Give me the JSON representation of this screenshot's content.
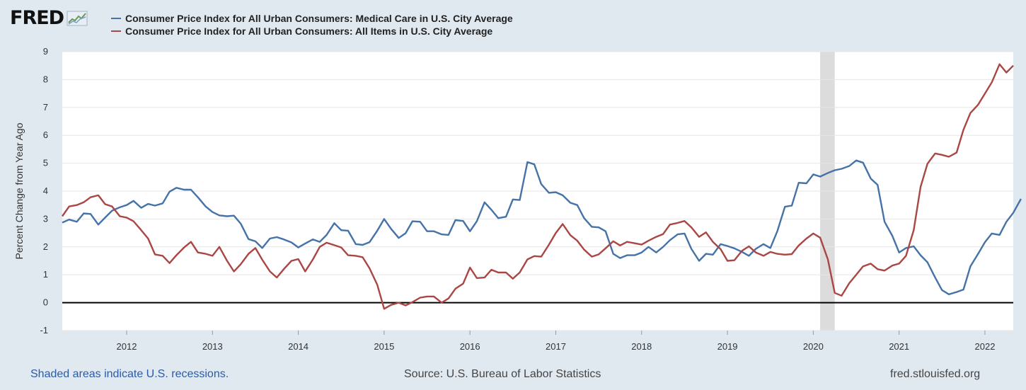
{
  "brand": {
    "logo_text": "FRED"
  },
  "colors": {
    "medical": "#4572a7",
    "all_items": "#aa4643",
    "zero_line": "#000000",
    "recession": "#dcdcdc"
  },
  "footer": {
    "note": "Shaded areas indicate U.S. recessions.",
    "source": "Source: U.S. Bureau of Labor Statistics",
    "url": "fred.stlouisfed.org"
  },
  "chart_data": {
    "type": "line",
    "ylabel": "Percent Change from Year Ago",
    "ylim": [
      -1,
      9
    ],
    "yticks": [
      -1,
      0,
      1,
      2,
      3,
      4,
      5,
      6,
      7,
      8,
      9
    ],
    "xlim": [
      2011.25,
      2022.33
    ],
    "xticks": [
      2012,
      2013,
      2014,
      2015,
      2016,
      2017,
      2018,
      2019,
      2020,
      2021,
      2022
    ],
    "grid": true,
    "legend_position": "top-left",
    "recessions": [
      [
        2020.08,
        2020.25
      ]
    ],
    "series": [
      {
        "name": "Consumer Price Index for All Urban Consumers: Medical Care in U.S. City Average",
        "color_key": "medical",
        "points": [
          [
            2011.25,
            2.87
          ],
          [
            2011.33,
            2.98
          ],
          [
            2011.42,
            2.9
          ],
          [
            2011.5,
            3.2
          ],
          [
            2011.58,
            3.18
          ],
          [
            2011.67,
            2.8
          ],
          [
            2011.75,
            3.05
          ],
          [
            2011.83,
            3.3
          ],
          [
            2011.92,
            3.42
          ],
          [
            2012.0,
            3.5
          ],
          [
            2012.08,
            3.65
          ],
          [
            2012.17,
            3.4
          ],
          [
            2012.25,
            3.54
          ],
          [
            2012.33,
            3.48
          ],
          [
            2012.42,
            3.56
          ],
          [
            2012.5,
            3.98
          ],
          [
            2012.58,
            4.12
          ],
          [
            2012.67,
            4.05
          ],
          [
            2012.75,
            4.05
          ],
          [
            2012.83,
            3.78
          ],
          [
            2012.92,
            3.45
          ],
          [
            2013.0,
            3.25
          ],
          [
            2013.08,
            3.13
          ],
          [
            2013.17,
            3.1
          ],
          [
            2013.25,
            3.12
          ],
          [
            2013.33,
            2.83
          ],
          [
            2013.42,
            2.28
          ],
          [
            2013.5,
            2.2
          ],
          [
            2013.58,
            1.96
          ],
          [
            2013.67,
            2.3
          ],
          [
            2013.75,
            2.35
          ],
          [
            2013.83,
            2.27
          ],
          [
            2013.92,
            2.16
          ],
          [
            2014.0,
            1.98
          ],
          [
            2014.08,
            2.12
          ],
          [
            2014.17,
            2.27
          ],
          [
            2014.25,
            2.18
          ],
          [
            2014.33,
            2.43
          ],
          [
            2014.42,
            2.85
          ],
          [
            2014.5,
            2.6
          ],
          [
            2014.58,
            2.58
          ],
          [
            2014.67,
            2.1
          ],
          [
            2014.75,
            2.07
          ],
          [
            2014.83,
            2.17
          ],
          [
            2014.92,
            2.58
          ],
          [
            2015.0,
            3.0
          ],
          [
            2015.08,
            2.65
          ],
          [
            2015.17,
            2.32
          ],
          [
            2015.25,
            2.49
          ],
          [
            2015.33,
            2.92
          ],
          [
            2015.42,
            2.9
          ],
          [
            2015.5,
            2.56
          ],
          [
            2015.58,
            2.56
          ],
          [
            2015.67,
            2.45
          ],
          [
            2015.75,
            2.43
          ],
          [
            2015.83,
            2.96
          ],
          [
            2015.92,
            2.93
          ],
          [
            2016.0,
            2.56
          ],
          [
            2016.08,
            2.92
          ],
          [
            2016.17,
            3.6
          ],
          [
            2016.25,
            3.33
          ],
          [
            2016.33,
            3.03
          ],
          [
            2016.42,
            3.08
          ],
          [
            2016.5,
            3.7
          ],
          [
            2016.58,
            3.68
          ],
          [
            2016.67,
            5.04
          ],
          [
            2016.75,
            4.96
          ],
          [
            2016.83,
            4.25
          ],
          [
            2016.92,
            3.94
          ],
          [
            2017.0,
            3.96
          ],
          [
            2017.08,
            3.85
          ],
          [
            2017.17,
            3.58
          ],
          [
            2017.25,
            3.5
          ],
          [
            2017.33,
            3.03
          ],
          [
            2017.42,
            2.72
          ],
          [
            2017.5,
            2.7
          ],
          [
            2017.58,
            2.56
          ],
          [
            2017.67,
            1.75
          ],
          [
            2017.75,
            1.6
          ],
          [
            2017.83,
            1.7
          ],
          [
            2017.92,
            1.7
          ],
          [
            2018.0,
            1.8
          ],
          [
            2018.08,
            2.0
          ],
          [
            2018.17,
            1.8
          ],
          [
            2018.25,
            2.0
          ],
          [
            2018.33,
            2.24
          ],
          [
            2018.42,
            2.45
          ],
          [
            2018.5,
            2.48
          ],
          [
            2018.58,
            1.93
          ],
          [
            2018.67,
            1.5
          ],
          [
            2018.75,
            1.75
          ],
          [
            2018.83,
            1.72
          ],
          [
            2018.92,
            2.1
          ],
          [
            2019.0,
            2.03
          ],
          [
            2019.08,
            1.95
          ],
          [
            2019.17,
            1.82
          ],
          [
            2019.25,
            1.68
          ],
          [
            2019.33,
            1.93
          ],
          [
            2019.42,
            2.1
          ],
          [
            2019.5,
            1.96
          ],
          [
            2019.58,
            2.55
          ],
          [
            2019.67,
            3.44
          ],
          [
            2019.75,
            3.48
          ],
          [
            2019.83,
            4.3
          ],
          [
            2019.92,
            4.28
          ],
          [
            2020.0,
            4.6
          ],
          [
            2020.08,
            4.52
          ],
          [
            2020.17,
            4.65
          ],
          [
            2020.25,
            4.75
          ],
          [
            2020.33,
            4.8
          ],
          [
            2020.42,
            4.9
          ],
          [
            2020.5,
            5.1
          ],
          [
            2020.58,
            5.02
          ],
          [
            2020.67,
            4.45
          ],
          [
            2020.75,
            4.22
          ],
          [
            2020.83,
            2.9
          ],
          [
            2020.92,
            2.4
          ],
          [
            2021.0,
            1.8
          ],
          [
            2021.08,
            1.96
          ],
          [
            2021.17,
            2.02
          ],
          [
            2021.25,
            1.7
          ],
          [
            2021.33,
            1.45
          ],
          [
            2021.42,
            0.9
          ],
          [
            2021.5,
            0.45
          ],
          [
            2021.58,
            0.3
          ],
          [
            2021.67,
            0.38
          ],
          [
            2021.75,
            0.47
          ],
          [
            2021.83,
            1.3
          ],
          [
            2021.92,
            1.75
          ],
          [
            2022.0,
            2.17
          ],
          [
            2022.08,
            2.48
          ],
          [
            2022.17,
            2.43
          ],
          [
            2022.25,
            2.9
          ],
          [
            2022.33,
            3.22
          ],
          [
            2022.42,
            3.72
          ]
        ]
      },
      {
        "name": "Consumer Price Index for All Urban Consumers: All Items in U.S. City Average",
        "color_key": "all_items",
        "points": [
          [
            2011.25,
            3.1
          ],
          [
            2011.33,
            3.45
          ],
          [
            2011.42,
            3.5
          ],
          [
            2011.5,
            3.6
          ],
          [
            2011.58,
            3.78
          ],
          [
            2011.67,
            3.85
          ],
          [
            2011.75,
            3.53
          ],
          [
            2011.83,
            3.45
          ],
          [
            2011.92,
            3.1
          ],
          [
            2012.0,
            3.05
          ],
          [
            2012.08,
            2.92
          ],
          [
            2012.17,
            2.6
          ],
          [
            2012.25,
            2.3
          ],
          [
            2012.33,
            1.73
          ],
          [
            2012.42,
            1.68
          ],
          [
            2012.5,
            1.42
          ],
          [
            2012.58,
            1.7
          ],
          [
            2012.67,
            1.98
          ],
          [
            2012.75,
            2.18
          ],
          [
            2012.83,
            1.8
          ],
          [
            2012.92,
            1.75
          ],
          [
            2013.0,
            1.68
          ],
          [
            2013.08,
            2.0
          ],
          [
            2013.17,
            1.5
          ],
          [
            2013.25,
            1.12
          ],
          [
            2013.33,
            1.38
          ],
          [
            2013.42,
            1.75
          ],
          [
            2013.5,
            1.96
          ],
          [
            2013.58,
            1.54
          ],
          [
            2013.67,
            1.12
          ],
          [
            2013.75,
            0.9
          ],
          [
            2013.83,
            1.2
          ],
          [
            2013.92,
            1.5
          ],
          [
            2014.0,
            1.56
          ],
          [
            2014.08,
            1.12
          ],
          [
            2014.17,
            1.55
          ],
          [
            2014.25,
            2.0
          ],
          [
            2014.33,
            2.15
          ],
          [
            2014.42,
            2.06
          ],
          [
            2014.5,
            1.98
          ],
          [
            2014.58,
            1.7
          ],
          [
            2014.67,
            1.68
          ],
          [
            2014.75,
            1.63
          ],
          [
            2014.83,
            1.23
          ],
          [
            2014.92,
            0.64
          ],
          [
            2015.0,
            -0.22
          ],
          [
            2015.08,
            -0.08
          ],
          [
            2015.17,
            0.0
          ],
          [
            2015.25,
            -0.1
          ],
          [
            2015.33,
            0.02
          ],
          [
            2015.42,
            0.18
          ],
          [
            2015.5,
            0.22
          ],
          [
            2015.58,
            0.22
          ],
          [
            2015.67,
            0.0
          ],
          [
            2015.75,
            0.15
          ],
          [
            2015.83,
            0.5
          ],
          [
            2015.92,
            0.68
          ],
          [
            2016.0,
            1.26
          ],
          [
            2016.08,
            0.88
          ],
          [
            2016.17,
            0.9
          ],
          [
            2016.25,
            1.18
          ],
          [
            2016.33,
            1.08
          ],
          [
            2016.42,
            1.08
          ],
          [
            2016.5,
            0.86
          ],
          [
            2016.58,
            1.08
          ],
          [
            2016.67,
            1.55
          ],
          [
            2016.75,
            1.67
          ],
          [
            2016.83,
            1.65
          ],
          [
            2016.92,
            2.08
          ],
          [
            2017.0,
            2.5
          ],
          [
            2017.08,
            2.82
          ],
          [
            2017.17,
            2.42
          ],
          [
            2017.25,
            2.22
          ],
          [
            2017.33,
            1.9
          ],
          [
            2017.42,
            1.65
          ],
          [
            2017.5,
            1.73
          ],
          [
            2017.58,
            1.95
          ],
          [
            2017.67,
            2.2
          ],
          [
            2017.75,
            2.05
          ],
          [
            2017.83,
            2.18
          ],
          [
            2017.92,
            2.13
          ],
          [
            2018.0,
            2.08
          ],
          [
            2018.08,
            2.22
          ],
          [
            2018.17,
            2.36
          ],
          [
            2018.25,
            2.46
          ],
          [
            2018.33,
            2.8
          ],
          [
            2018.42,
            2.86
          ],
          [
            2018.5,
            2.93
          ],
          [
            2018.58,
            2.7
          ],
          [
            2018.67,
            2.36
          ],
          [
            2018.75,
            2.52
          ],
          [
            2018.83,
            2.18
          ],
          [
            2018.92,
            1.92
          ],
          [
            2019.0,
            1.5
          ],
          [
            2019.08,
            1.52
          ],
          [
            2019.17,
            1.86
          ],
          [
            2019.25,
            2.02
          ],
          [
            2019.33,
            1.8
          ],
          [
            2019.42,
            1.68
          ],
          [
            2019.5,
            1.82
          ],
          [
            2019.58,
            1.75
          ],
          [
            2019.67,
            1.72
          ],
          [
            2019.75,
            1.74
          ],
          [
            2019.83,
            2.05
          ],
          [
            2019.92,
            2.3
          ],
          [
            2020.0,
            2.48
          ],
          [
            2020.08,
            2.33
          ],
          [
            2020.17,
            1.55
          ],
          [
            2020.25,
            0.35
          ],
          [
            2020.33,
            0.25
          ],
          [
            2020.42,
            0.7
          ],
          [
            2020.5,
            1.0
          ],
          [
            2020.58,
            1.3
          ],
          [
            2020.67,
            1.4
          ],
          [
            2020.75,
            1.2
          ],
          [
            2020.83,
            1.15
          ],
          [
            2020.92,
            1.33
          ],
          [
            2021.0,
            1.4
          ],
          [
            2021.08,
            1.68
          ],
          [
            2021.17,
            2.6
          ],
          [
            2021.25,
            4.15
          ],
          [
            2021.33,
            4.98
          ],
          [
            2021.42,
            5.35
          ],
          [
            2021.5,
            5.3
          ],
          [
            2021.58,
            5.23
          ],
          [
            2021.67,
            5.38
          ],
          [
            2021.75,
            6.2
          ],
          [
            2021.83,
            6.8
          ],
          [
            2021.92,
            7.1
          ],
          [
            2022.0,
            7.5
          ],
          [
            2022.08,
            7.9
          ],
          [
            2022.17,
            8.55
          ],
          [
            2022.25,
            8.25
          ],
          [
            2022.33,
            8.5
          ]
        ]
      }
    ]
  }
}
